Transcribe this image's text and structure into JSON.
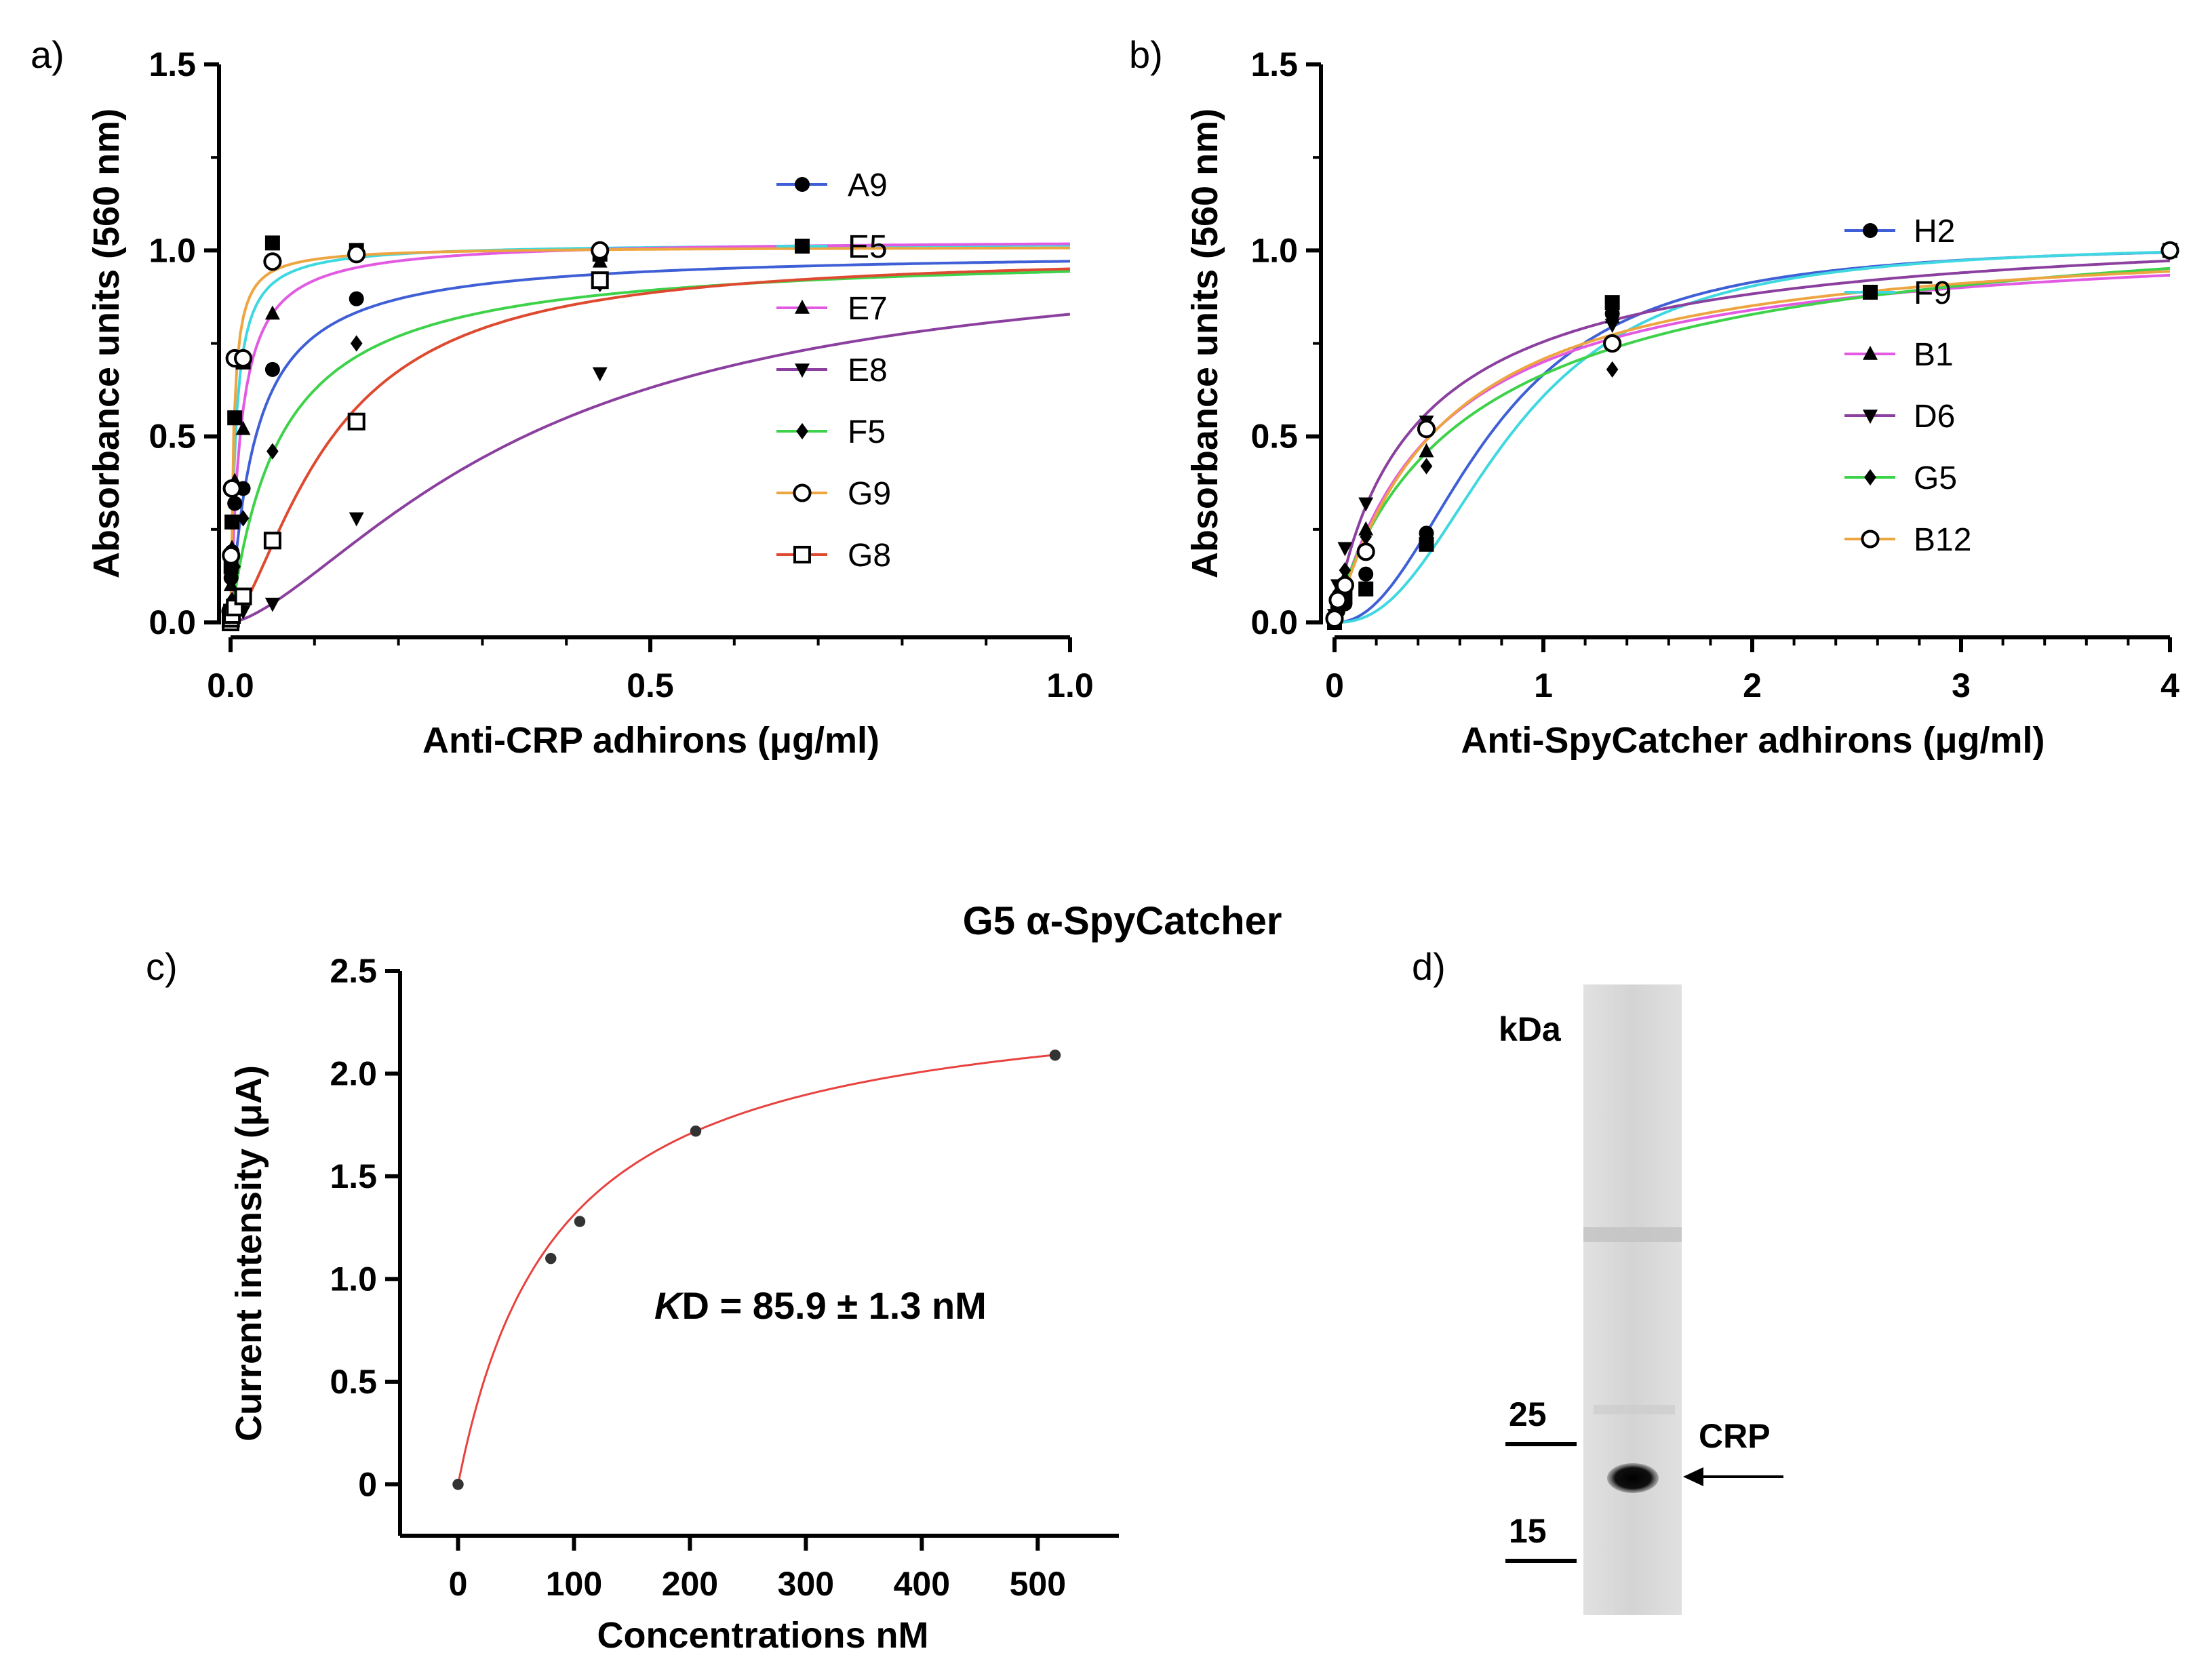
{
  "panels": {
    "a": {
      "label": "a)"
    },
    "b": {
      "label": "b)"
    },
    "c": {
      "label": "c)",
      "title": "G5 α-SpyCatcher",
      "annotation_k": "K",
      "annotation_sub": "D",
      "annotation_rest": " = 85.9 ± 1.3 nM"
    },
    "d": {
      "label": "d)",
      "unit_label": "kDa",
      "marker_25": "25",
      "marker_15": "15",
      "band_label": "CRP"
    }
  },
  "colors": {
    "axis": "#000000",
    "marker": "#000000",
    "fit_c": "#e8423f"
  },
  "chart_data": [
    {
      "id": "a",
      "type": "scatter",
      "title": "",
      "xlabel": "Anti-CRP adhirons (μg/ml)",
      "ylabel": "Absorbance units (560 nm)",
      "xlim": [
        0,
        1.0
      ],
      "ylim": [
        0,
        1.5
      ],
      "xticks": [
        0,
        0.5,
        1.0
      ],
      "xtick_labels": [
        "0.0",
        "0.5",
        "1.0"
      ],
      "yticks": [
        0,
        0.5,
        1.0,
        1.5
      ],
      "ytick_labels": [
        "0.0",
        "0.5",
        "1.0",
        "1.5"
      ],
      "legend_position": "right",
      "x": [
        0,
        0.0006,
        0.0017,
        0.005,
        0.015,
        0.05,
        0.15,
        0.44
      ],
      "series": [
        {
          "name": "A9",
          "color": "#3f5fd6",
          "marker": "circle",
          "values": [
            0.02,
            0.12,
            0.19,
            0.32,
            0.36,
            0.68,
            0.87,
            0.99
          ],
          "fit": {
            "top": 1.0,
            "ec50": 0.03,
            "n": 1.0
          }
        },
        {
          "name": "E5",
          "color": "#3fd8e0",
          "marker": "square",
          "values": [
            0.03,
            0.15,
            0.27,
            0.55,
            0.7,
            1.02,
            1.0,
            0.99
          ],
          "fit": {
            "top": 1.02,
            "ec50": 0.006,
            "n": 1.0
          }
        },
        {
          "name": "E7",
          "color": "#e25ae2",
          "marker": "triangle",
          "values": [
            0.02,
            0.1,
            0.2,
            0.38,
            0.52,
            0.83,
            0.99,
            0.97
          ],
          "fit": {
            "top": 1.03,
            "ec50": 0.012,
            "n": 1.0
          }
        },
        {
          "name": "E8",
          "color": "#8b3f9e",
          "marker": "triangle-down",
          "values": [
            0.0,
            0.0,
            0.01,
            0.02,
            0.03,
            0.05,
            0.28,
            0.67
          ],
          "fit": {
            "top": 1.0,
            "ec50": 0.35,
            "n": 1.5
          }
        },
        {
          "name": "F5",
          "color": "#3ed24a",
          "marker": "diamond",
          "values": [
            0.01,
            0.03,
            0.06,
            0.15,
            0.28,
            0.46,
            0.75,
            0.91
          ],
          "fit": {
            "top": 1.0,
            "ec50": 0.06,
            "n": 1.0
          }
        },
        {
          "name": "G9",
          "color": "#eda540",
          "marker": "open-circle",
          "values": [
            0.03,
            0.18,
            0.36,
            0.71,
            0.71,
            0.97,
            0.99,
            1.0
          ],
          "fit": {
            "top": 1.01,
            "ec50": 0.0035,
            "n": 1.0
          }
        },
        {
          "name": "G8",
          "color": "#de4a30",
          "marker": "open-square",
          "values": [
            0.0,
            0.01,
            0.02,
            0.04,
            0.07,
            0.22,
            0.54,
            0.92
          ],
          "fit": {
            "top": 0.99,
            "ec50": 0.12,
            "n": 1.5
          }
        }
      ]
    },
    {
      "id": "b",
      "type": "scatter",
      "title": "",
      "xlabel": "Anti-SpyCatcher adhirons (μg/ml)",
      "ylabel": "Absorbance units (560 nm)",
      "xlim": [
        0,
        4
      ],
      "ylim": [
        0,
        1.5
      ],
      "xticks": [
        0,
        1,
        2,
        3,
        4
      ],
      "xtick_labels": [
        "0",
        "1",
        "2",
        "3",
        "4"
      ],
      "yticks": [
        0,
        0.5,
        1.0,
        1.5
      ],
      "ytick_labels": [
        "0.0",
        "0.5",
        "1.0",
        "1.5"
      ],
      "legend_position": "right",
      "x": [
        0,
        0.016,
        0.05,
        0.15,
        0.44,
        1.33,
        4.0
      ],
      "series": [
        {
          "name": "H2",
          "color": "#3f5fd6",
          "marker": "circle",
          "values": [
            0.0,
            0.03,
            0.05,
            0.13,
            0.24,
            0.83,
            1.0
          ],
          "fit": {
            "top": 1.02,
            "ec50": 0.75,
            "n": 2.2
          }
        },
        {
          "name": "F9",
          "color": "#3fd8e0",
          "marker": "square",
          "values": [
            0.0,
            0.05,
            0.07,
            0.09,
            0.21,
            0.86,
            1.0
          ],
          "fit": {
            "top": 1.02,
            "ec50": 0.85,
            "n": 2.4
          }
        },
        {
          "name": "B1",
          "color": "#e25ae2",
          "marker": "triangle",
          "values": [
            0.01,
            0.07,
            0.12,
            0.25,
            0.46,
            0.82,
            1.0
          ],
          "fit": {
            "top": 1.05,
            "ec50": 0.5,
            "n": 1.0
          }
        },
        {
          "name": "D6",
          "color": "#8b3f9e",
          "marker": "triangle-down",
          "values": [
            0.02,
            0.1,
            0.2,
            0.32,
            0.54,
            0.8,
            1.0
          ],
          "fit": {
            "top": 1.1,
            "ec50": 0.42,
            "n": 0.9
          }
        },
        {
          "name": "G5",
          "color": "#3ed24a",
          "marker": "diamond",
          "values": [
            0.02,
            0.08,
            0.14,
            0.23,
            0.42,
            0.68,
            1.0
          ],
          "fit": {
            "top": 1.15,
            "ec50": 0.7,
            "n": 0.9
          }
        },
        {
          "name": "B12",
          "color": "#eda540",
          "marker": "open-circle",
          "values": [
            0.01,
            0.06,
            0.1,
            0.19,
            0.52,
            0.75,
            1.0
          ],
          "fit": {
            "top": 1.05,
            "ec50": 0.5,
            "n": 1.05
          }
        }
      ]
    },
    {
      "id": "c",
      "type": "scatter",
      "title": "G5 α-SpyCatcher",
      "xlabel": "Concentrations nM",
      "ylabel": "Current intensity (μA)",
      "xlim": [
        -50,
        570
      ],
      "ylim": [
        -0.25,
        2.5
      ],
      "xticks": [
        0,
        100,
        200,
        300,
        400,
        500
      ],
      "xtick_labels": [
        "0",
        "100",
        "200",
        "300",
        "400",
        "500"
      ],
      "yticks": [
        0,
        0.5,
        1.0,
        1.5,
        2.0,
        2.5
      ],
      "ytick_labels": [
        "0",
        "0.5",
        "1.0",
        "1.5",
        "2.0",
        "2.5"
      ],
      "legend_position": "none",
      "x": [
        0,
        80,
        105,
        205,
        515
      ],
      "series": [
        {
          "name": "G5 α-SpyCatcher",
          "color": "#e8423f",
          "marker": "dot",
          "values": [
            0.0,
            1.1,
            1.28,
            1.72,
            2.09
          ],
          "fit": {
            "top": 2.44,
            "kd": 85.9
          }
        }
      ]
    }
  ]
}
